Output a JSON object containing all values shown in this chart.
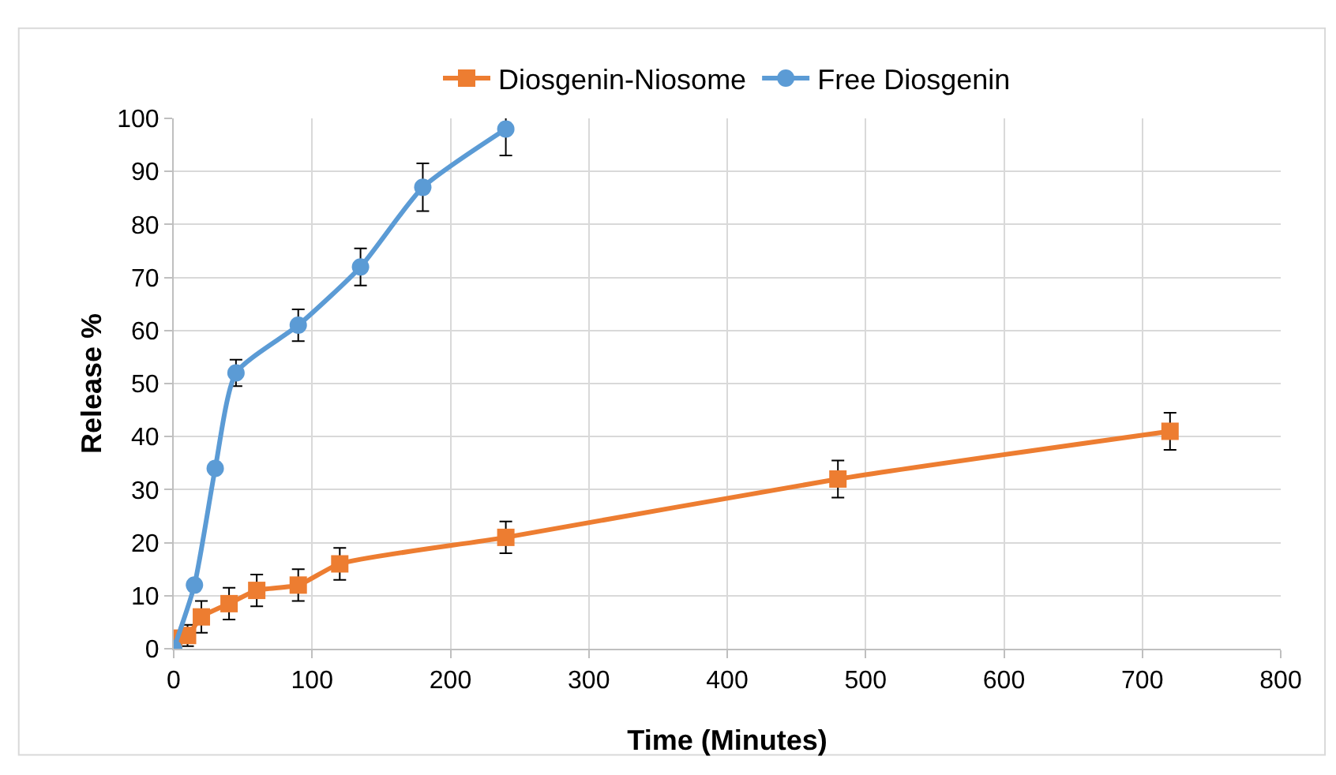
{
  "chart_data": {
    "type": "line",
    "xlabel": "Time (Minutes)",
    "ylabel": "Release %",
    "xlim": [
      0,
      800
    ],
    "xticks": [
      0,
      100,
      200,
      300,
      400,
      500,
      600,
      700,
      800
    ],
    "ylim": [
      0,
      100
    ],
    "yticks": [
      0,
      10,
      20,
      30,
      40,
      50,
      60,
      70,
      80,
      90,
      100
    ],
    "grid": true,
    "legend": "top",
    "line_style": "solid",
    "series": [
      {
        "name": "Diosgenin-Niosome",
        "color": "#ed7d31",
        "marker": "square",
        "x": [
          0,
          10,
          20,
          40,
          60,
          90,
          120,
          240,
          480,
          720
        ],
        "values": [
          2,
          2.5,
          6,
          8.5,
          11,
          12,
          16,
          21,
          32,
          41
        ],
        "errors": [
          null,
          2,
          3,
          3,
          3,
          3,
          3,
          3,
          3.5,
          3.5
        ]
      },
      {
        "name": "Free Diosgenin",
        "color": "#5b9bd5",
        "marker": "circle",
        "x": [
          0,
          15,
          30,
          45,
          90,
          135,
          180,
          240
        ],
        "values": [
          0,
          12,
          34,
          52,
          61,
          72,
          87,
          98
        ],
        "errors": [
          null,
          null,
          null,
          2.5,
          3,
          3.5,
          4.5,
          5
        ]
      }
    ]
  }
}
